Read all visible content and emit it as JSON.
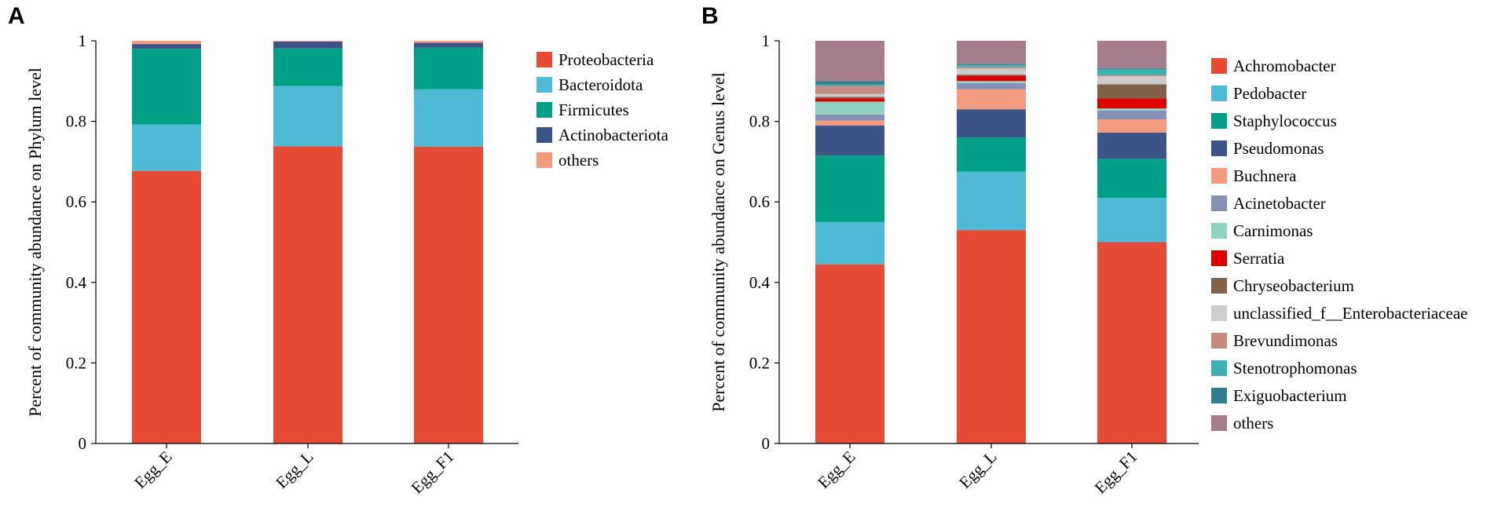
{
  "chart_data": [
    {
      "type": "bar",
      "stacked": true,
      "panel": "A",
      "ylabel": "Percent of community abundance on Phylum level",
      "ylim": [
        0,
        1
      ],
      "yticks": [
        "0",
        "0.2",
        "0.4",
        "0.6",
        "0.8",
        "1"
      ],
      "categories": [
        "Egg_E",
        "Egg_L",
        "Egg_F1"
      ],
      "series": [
        {
          "name": "Proteobacteria",
          "color": "#E64B35",
          "values": [
            0.677,
            0.738,
            0.737
          ]
        },
        {
          "name": "Bacteroidota",
          "color": "#4DBBD5",
          "values": [
            0.115,
            0.15,
            0.143
          ]
        },
        {
          "name": "Firmicutes",
          "color": "#00A087",
          "values": [
            0.188,
            0.093,
            0.103
          ]
        },
        {
          "name": "Actinobacteriota",
          "color": "#3C5488",
          "values": [
            0.012,
            0.017,
            0.012
          ]
        },
        {
          "name": "others",
          "color": "#F39B7F",
          "values": [
            0.008,
            0.002,
            0.005
          ]
        }
      ]
    },
    {
      "type": "bar",
      "stacked": true,
      "panel": "B",
      "ylabel": "Percent of community abundance on Genus level",
      "ylim": [
        0,
        1
      ],
      "yticks": [
        "0",
        "0.2",
        "0.4",
        "0.6",
        "0.8",
        "1"
      ],
      "categories": [
        "Egg_E",
        "Egg_L",
        "Egg_F1"
      ],
      "series": [
        {
          "name": "Achromobacter",
          "color": "#E64B35",
          "values": [
            0.445,
            0.53,
            0.5
          ]
        },
        {
          "name": "Pedobacter",
          "color": "#4DBBD5",
          "values": [
            0.105,
            0.145,
            0.11
          ]
        },
        {
          "name": "Staphylococcus",
          "color": "#00A087",
          "values": [
            0.165,
            0.085,
            0.097
          ]
        },
        {
          "name": "Pseudomonas",
          "color": "#3C5488",
          "values": [
            0.075,
            0.07,
            0.065
          ]
        },
        {
          "name": "Buchnera",
          "color": "#F39B7F",
          "values": [
            0.012,
            0.05,
            0.033
          ]
        },
        {
          "name": "Acinetobacter",
          "color": "#8491B4",
          "values": [
            0.015,
            0.015,
            0.022
          ]
        },
        {
          "name": "Carnimonas",
          "color": "#91D1C2",
          "values": [
            0.032,
            0.005,
            0.005
          ]
        },
        {
          "name": "Serratia",
          "color": "#DC0000",
          "values": [
            0.008,
            0.013,
            0.025
          ]
        },
        {
          "name": "Chryseobacterium",
          "color": "#7E6148",
          "values": [
            0.004,
            0.003,
            0.035
          ]
        },
        {
          "name": "unclassified_f__Enterobacteriaceae",
          "color": "#CCCCCC",
          "values": [
            0.007,
            0.015,
            0.02
          ]
        },
        {
          "name": "Brevundimonas",
          "color": "#C48B80",
          "values": [
            0.02,
            0.004,
            0.003
          ]
        },
        {
          "name": "Stenotrophomonas",
          "color": "#3BB0AE",
          "values": [
            0.004,
            0.005,
            0.015
          ]
        },
        {
          "name": "Exiguobacterium",
          "color": "#337C8C",
          "values": [
            0.008,
            0.003,
            0.002
          ]
        },
        {
          "name": "others",
          "color": "#A57C8C",
          "values": [
            0.1,
            0.057,
            0.068
          ]
        }
      ]
    }
  ]
}
